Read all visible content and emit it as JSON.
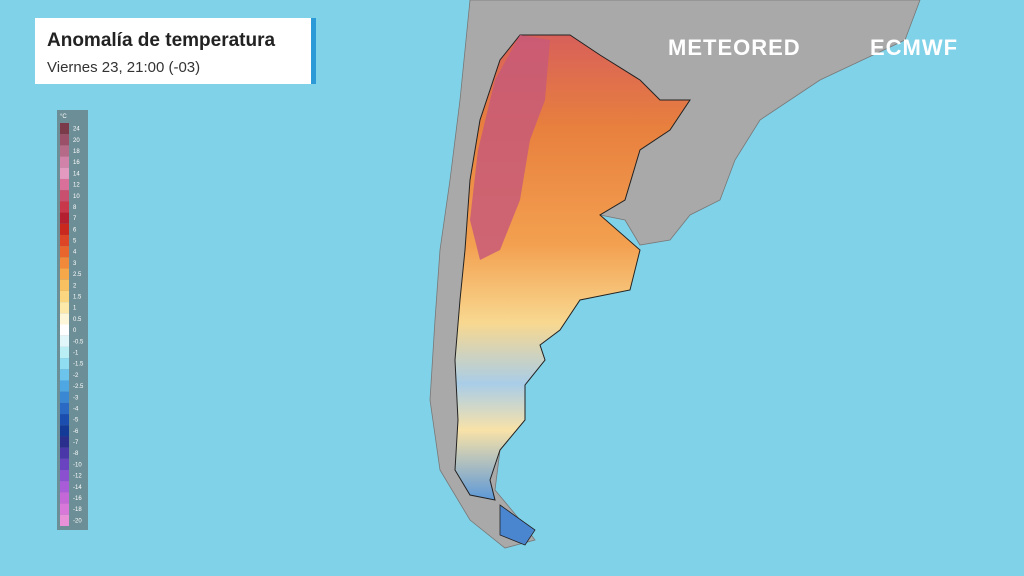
{
  "header": {
    "title": "Anomalía de temperatura",
    "subtitle": "Viernes 23, 21:00 (-03)"
  },
  "logos": {
    "left": "METEORED",
    "right": "ECMWF"
  },
  "legend": {
    "unit": "°C",
    "items": [
      {
        "label": 24,
        "color": "#7a3a4a"
      },
      {
        "label": 20,
        "color": "#9a5068"
      },
      {
        "label": 18,
        "color": "#b56a88"
      },
      {
        "label": 16,
        "color": "#d082a8"
      },
      {
        "label": 14,
        "color": "#e39ac0"
      },
      {
        "label": 12,
        "color": "#d8709a"
      },
      {
        "label": 10,
        "color": "#c94f6e"
      },
      {
        "label": 8,
        "color": "#c8384a"
      },
      {
        "label": 7,
        "color": "#b42030"
      },
      {
        "label": 6,
        "color": "#c8281e"
      },
      {
        "label": 5,
        "color": "#dc4626"
      },
      {
        "label": 4,
        "color": "#e8662e"
      },
      {
        "label": 3,
        "color": "#f08a3a"
      },
      {
        "label": 2.5,
        "color": "#f5a84a"
      },
      {
        "label": 2,
        "color": "#f8c060"
      },
      {
        "label": 1.5,
        "color": "#fad680"
      },
      {
        "label": 1,
        "color": "#fce8a8"
      },
      {
        "label": 0.5,
        "color": "#fef6d8"
      },
      {
        "label": 0,
        "color": "#ffffff"
      },
      {
        "label": -0.5,
        "color": "#e0f6f8"
      },
      {
        "label": -1,
        "color": "#b8eef4"
      },
      {
        "label": -1.5,
        "color": "#90dcf0"
      },
      {
        "label": -2,
        "color": "#6cc4ec"
      },
      {
        "label": -2.5,
        "color": "#4ea6e2"
      },
      {
        "label": -3,
        "color": "#3a88d4"
      },
      {
        "label": -4,
        "color": "#2a6ac4"
      },
      {
        "label": -5,
        "color": "#1c4eb0"
      },
      {
        "label": -6,
        "color": "#143a98"
      },
      {
        "label": -7,
        "color": "#2a2e8c"
      },
      {
        "label": -8,
        "color": "#4a38a8"
      },
      {
        "label": -10,
        "color": "#6a44c0"
      },
      {
        "label": -12,
        "color": "#8a50d0"
      },
      {
        "label": -14,
        "color": "#a85cd8"
      },
      {
        "label": -16,
        "color": "#c468d8"
      },
      {
        "label": -18,
        "color": "#d878d8"
      },
      {
        "label": -20,
        "color": "#e890d8"
      }
    ]
  }
}
